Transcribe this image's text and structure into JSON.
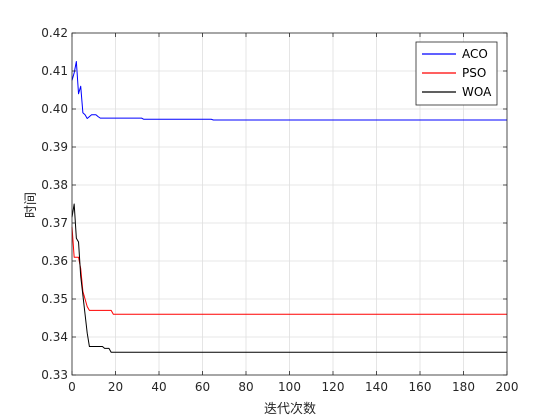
{
  "chart_data": {
    "type": "line",
    "xlabel": "迭代次数",
    "ylabel": "时间",
    "xlim": [
      0,
      200
    ],
    "ylim": [
      0.33,
      0.42
    ],
    "x_ticks": [
      "0",
      "20",
      "40",
      "60",
      "80",
      "100",
      "120",
      "140",
      "160",
      "180",
      "200"
    ],
    "y_ticks": [
      "0.33",
      "0.34",
      "0.35",
      "0.36",
      "0.37",
      "0.38",
      "0.39",
      "0.40",
      "0.41",
      "0.42"
    ],
    "grid": true,
    "legend_position": "top-right",
    "series": [
      {
        "name": "ACO",
        "color": "#0000ff",
        "points": [
          [
            0,
            0.4075
          ],
          [
            1,
            0.4095
          ],
          [
            2,
            0.4125
          ],
          [
            3,
            0.404
          ],
          [
            4,
            0.406
          ],
          [
            5,
            0.399
          ],
          [
            6,
            0.3985
          ],
          [
            7,
            0.3975
          ],
          [
            8,
            0.398
          ],
          [
            9,
            0.3985
          ],
          [
            10,
            0.3985
          ],
          [
            11,
            0.3985
          ],
          [
            12,
            0.398
          ],
          [
            13,
            0.3976
          ],
          [
            20,
            0.3976
          ],
          [
            32,
            0.3976
          ],
          [
            33,
            0.3973
          ],
          [
            64,
            0.3973
          ],
          [
            65,
            0.3971
          ],
          [
            200,
            0.3971
          ]
        ]
      },
      {
        "name": "PSO",
        "color": "#ff0000",
        "points": [
          [
            0,
            0.369
          ],
          [
            1,
            0.361
          ],
          [
            3,
            0.361
          ],
          [
            4,
            0.358
          ],
          [
            5,
            0.352
          ],
          [
            6,
            0.35
          ],
          [
            7,
            0.348
          ],
          [
            8,
            0.347
          ],
          [
            10,
            0.347
          ],
          [
            18,
            0.347
          ],
          [
            19,
            0.346
          ],
          [
            200,
            0.346
          ]
        ]
      },
      {
        "name": "WOA",
        "color": "#000000",
        "points": [
          [
            0,
            0.3715
          ],
          [
            1,
            0.375
          ],
          [
            2,
            0.366
          ],
          [
            3,
            0.365
          ],
          [
            4,
            0.356
          ],
          [
            5,
            0.351
          ],
          [
            6,
            0.346
          ],
          [
            7,
            0.341
          ],
          [
            8,
            0.3375
          ],
          [
            10,
            0.3375
          ],
          [
            14,
            0.3375
          ],
          [
            15,
            0.337
          ],
          [
            17,
            0.337
          ],
          [
            18,
            0.336
          ],
          [
            200,
            0.336
          ]
        ]
      }
    ]
  }
}
